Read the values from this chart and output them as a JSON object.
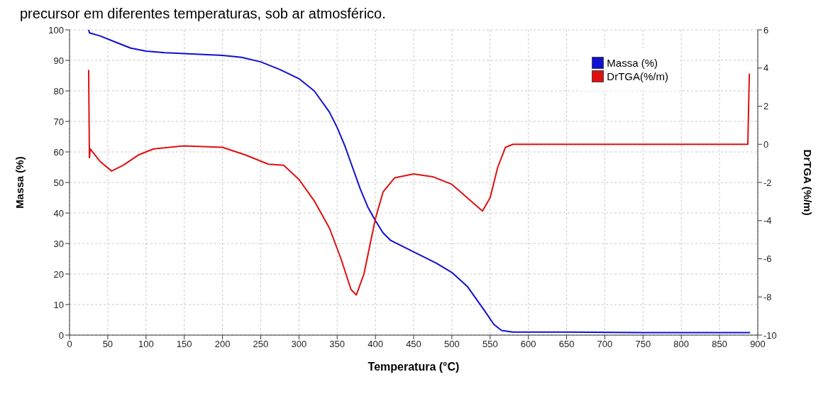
{
  "chart_data": {
    "type": "line",
    "annotations": [
      "precursor em diferentes temperaturas, sob ar atmosférico."
    ],
    "xlabel": "Temperatura (°C)",
    "ylabel": "Massa (%)",
    "y2label": "DrTGA (%/m)",
    "xlim": [
      0,
      900
    ],
    "xticks": [
      0,
      50,
      100,
      150,
      200,
      250,
      300,
      350,
      400,
      450,
      500,
      550,
      600,
      650,
      700,
      750,
      800,
      850,
      900
    ],
    "ylim": [
      0,
      100
    ],
    "yticks": [
      0,
      10,
      20,
      30,
      40,
      50,
      60,
      70,
      80,
      90,
      100
    ],
    "y2lim": [
      -10,
      6
    ],
    "y2ticks": [
      -10,
      -8,
      -6,
      -4,
      -2,
      0,
      2,
      4,
      6
    ],
    "grid": true,
    "legend": "top right",
    "marker": "none",
    "line_style": "solid",
    "series": [
      {
        "name": "Massa (%)",
        "color": "#1010d0",
        "x": [
          25,
          26,
          40,
          60,
          80,
          100,
          125,
          150,
          200,
          225,
          250,
          275,
          300,
          320,
          340,
          350,
          360,
          370,
          380,
          390,
          400,
          410,
          420,
          440,
          460,
          480,
          500,
          520,
          540,
          555,
          565,
          580,
          650,
          750,
          890
        ],
        "values": [
          100,
          99,
          98,
          96,
          94,
          93,
          92.5,
          92.2,
          91.6,
          91,
          89.5,
          87,
          84,
          80,
          73,
          68,
          62,
          55,
          48,
          42,
          37.5,
          33.5,
          31,
          28.5,
          26,
          23.5,
          20.5,
          16,
          9,
          3.5,
          1.5,
          1,
          1,
          0.8,
          0.8
        ]
      },
      {
        "name": "DrTGA(%/m)",
        "color": "#e01010",
        "axis": "y2",
        "x": [
          25,
          26,
          27,
          40,
          55,
          70,
          90,
          110,
          150,
          200,
          230,
          260,
          280,
          300,
          320,
          340,
          355,
          368,
          375,
          385,
          400,
          410,
          425,
          450,
          475,
          500,
          520,
          540,
          550,
          560,
          570,
          580,
          850,
          887,
          889
        ],
        "values": [
          3.9,
          -0.7,
          -0.24,
          -0.9,
          -1.4,
          -1.1,
          -0.56,
          -0.24,
          -0.08,
          -0.16,
          -0.56,
          -1.04,
          -1.1,
          -1.84,
          -2.96,
          -4.4,
          -6,
          -7.6,
          -7.9,
          -6.8,
          -3.9,
          -2.5,
          -1.76,
          -1.55,
          -1.7,
          -2.1,
          -2.8,
          -3.5,
          -2.8,
          -1.2,
          -0.16,
          0,
          0,
          0,
          3.7
        ]
      }
    ]
  }
}
